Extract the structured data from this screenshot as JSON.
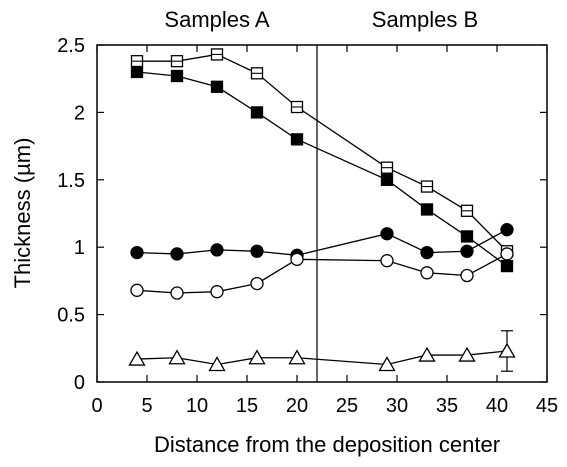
{
  "chart_data": {
    "type": "scatter",
    "xlabel": "Distance from the deposition center",
    "ylabel": "Thickness (µm)",
    "xlim": [
      0,
      45
    ],
    "ylim": [
      0,
      2.5
    ],
    "x_ticks": [
      0,
      5,
      10,
      15,
      20,
      25,
      30,
      35,
      40,
      45
    ],
    "y_ticks": [
      0,
      0.5,
      1,
      1.5,
      2,
      2.5
    ],
    "x_tick_labels": [
      "0",
      "5",
      "10",
      "15",
      "20",
      "25",
      "30",
      "35",
      "40",
      "45"
    ],
    "y_tick_labels": [
      "0",
      "0.5",
      "1",
      "1.5",
      "2",
      "2.5"
    ],
    "grid": false,
    "divider_x": 22,
    "region_labels": [
      "Samples A",
      "Samples B"
    ],
    "series": [
      {
        "marker": "square-open",
        "points": [
          [
            4,
            2.38
          ],
          [
            8,
            2.38
          ],
          [
            12,
            2.43
          ],
          [
            16,
            2.29
          ],
          [
            20,
            2.04
          ],
          [
            29,
            1.59
          ],
          [
            33,
            1.45
          ],
          [
            37,
            1.27
          ],
          [
            41,
            0.97
          ]
        ]
      },
      {
        "marker": "square-filled",
        "points": [
          [
            4,
            2.3
          ],
          [
            8,
            2.27
          ],
          [
            12,
            2.19
          ],
          [
            16,
            2.0
          ],
          [
            20,
            1.8
          ],
          [
            29,
            1.5
          ],
          [
            33,
            1.28
          ],
          [
            37,
            1.08
          ],
          [
            41,
            0.86
          ]
        ]
      },
      {
        "marker": "circle-filled",
        "points": [
          [
            4,
            0.96
          ],
          [
            8,
            0.95
          ],
          [
            12,
            0.98
          ],
          [
            16,
            0.97
          ],
          [
            20,
            0.94
          ],
          [
            29,
            1.1
          ],
          [
            33,
            0.96
          ],
          [
            37,
            0.97
          ],
          [
            41,
            1.13
          ]
        ]
      },
      {
        "marker": "circle-open",
        "points": [
          [
            4,
            0.68
          ],
          [
            8,
            0.66
          ],
          [
            12,
            0.67
          ],
          [
            16,
            0.73
          ],
          [
            20,
            0.91
          ],
          [
            29,
            0.9
          ],
          [
            33,
            0.81
          ],
          [
            37,
            0.79
          ],
          [
            41,
            0.95
          ]
        ]
      },
      {
        "marker": "triangle-open",
        "points": [
          [
            4,
            0.17
          ],
          [
            8,
            0.18
          ],
          [
            12,
            0.13
          ],
          [
            16,
            0.18
          ],
          [
            20,
            0.18
          ],
          [
            29,
            0.13
          ],
          [
            33,
            0.2
          ],
          [
            37,
            0.2
          ],
          [
            41,
            0.23
          ]
        ],
        "error_bars": [
          {
            "x": 41,
            "low": 0.08,
            "high": 0.38
          }
        ]
      }
    ]
  }
}
